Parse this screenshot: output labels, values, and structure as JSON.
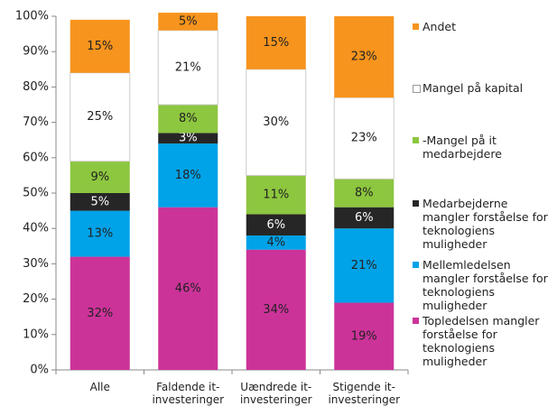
{
  "chart_data": {
    "type": "stacked_bar",
    "categories": [
      "Alle",
      "Faldende it-investeringer",
      "Uændrede it-investeringer",
      "Stigende it-investeringer"
    ],
    "series": [
      {
        "name": "Topledelsen mangler forståelse for teknologiens muligheder",
        "color": "#cc3399",
        "values": [
          32,
          46,
          34,
          19
        ],
        "value_labels": [
          "32%",
          "46%",
          "34%",
          "19%"
        ]
      },
      {
        "name": "Mellemledelsen mangler forståelse for teknologiens muligheder",
        "color": "#00a2e8",
        "values": [
          13,
          18,
          4,
          21
        ],
        "value_labels": [
          "13%",
          "18%",
          "4%",
          "21%"
        ]
      },
      {
        "name": "Medarbejderne mangler forståelse for teknologiens muligheder",
        "color": "#262626",
        "values": [
          5,
          3,
          6,
          6
        ],
        "value_labels": [
          "5%",
          "3%",
          "6%",
          "6%"
        ]
      },
      {
        "name": "-Mangel på it medarbejdere",
        "color": "#8dc63f",
        "values": [
          9,
          8,
          11,
          8
        ],
        "value_labels": [
          "9%",
          "8%",
          "11%",
          "8%"
        ]
      },
      {
        "name": "Mangel på kapital",
        "color": "#ffffff",
        "values": [
          25,
          21,
          30,
          23
        ],
        "value_labels": [
          "25%",
          "21%",
          "30%",
          "23%"
        ]
      },
      {
        "name": "Andet",
        "color": "#f7941d",
        "values": [
          15,
          5,
          15,
          23
        ],
        "value_labels": [
          "15%",
          "5%",
          "15%",
          "23%"
        ]
      }
    ],
    "ylim": [
      0,
      100
    ],
    "yticks": [
      {
        "value": 0,
        "label": "0%"
      },
      {
        "value": 10,
        "label": "10%"
      },
      {
        "value": 20,
        "label": "20%"
      },
      {
        "value": 30,
        "label": "30%"
      },
      {
        "value": 40,
        "label": "40%"
      },
      {
        "value": 50,
        "label": "50%"
      },
      {
        "value": 60,
        "label": "60%"
      },
      {
        "value": 70,
        "label": "70%"
      },
      {
        "value": 80,
        "label": "80%"
      },
      {
        "value": 90,
        "label": "90%"
      },
      {
        "value": 100,
        "label": "100%"
      }
    ],
    "grid": false
  }
}
